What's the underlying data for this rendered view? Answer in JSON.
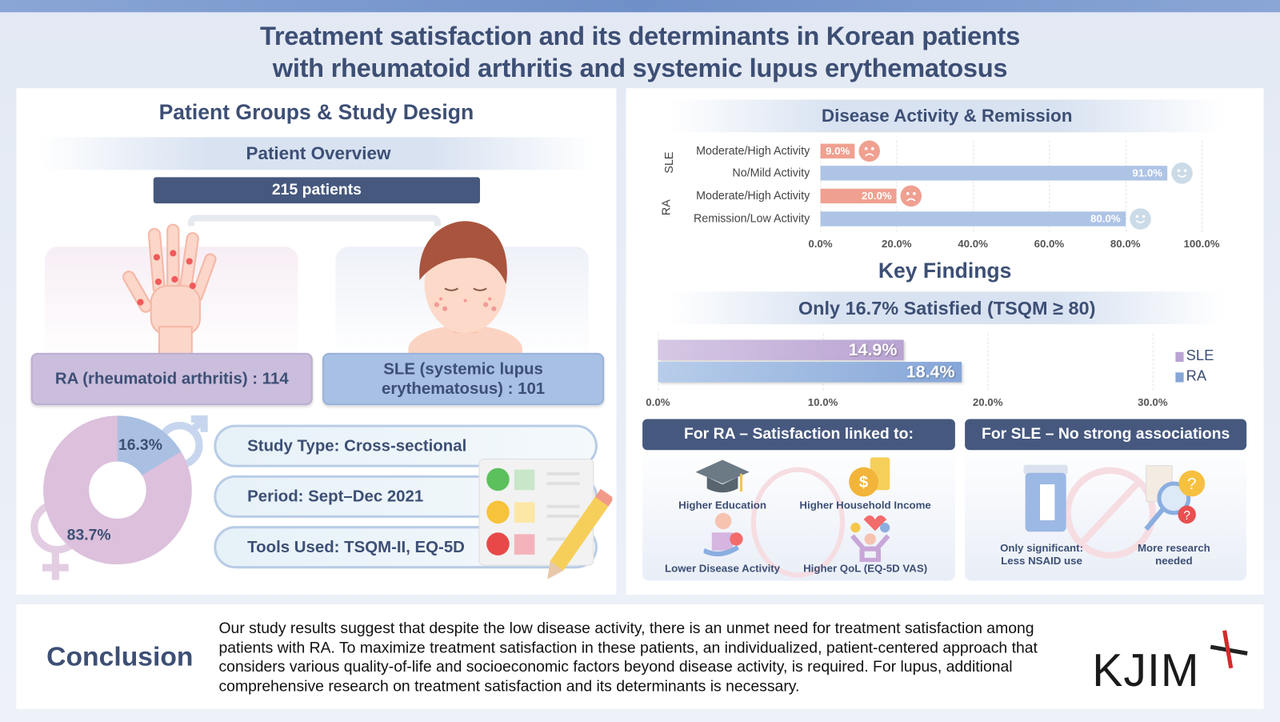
{
  "title": {
    "line1": "Treatment satisfaction and its determinants in Korean patients",
    "line2": "with rheumatoid arthritis and systemic lupus erythematosus"
  },
  "left": {
    "heading": "Patient Groups & Study Design",
    "overview_label": "Patient Overview",
    "total": "215 patients",
    "ra_group": "RA (rheumatoid arthritis) : 114",
    "sle_group_line1": "SLE (systemic lupus",
    "sle_group_line2": "erythematosus) : 101",
    "sex_donut": {
      "male_pct": 16.3,
      "female_pct": 83.7,
      "male_label": "16.3%",
      "female_label": "83.7%",
      "colors": {
        "male": "#a9c0e3",
        "female": "#dcc0dc"
      }
    },
    "study_type": "Study Type: Cross-sectional",
    "period": "Period: Sept–Dec 2021",
    "tools": "Tools Used: TSQM-II, EQ-5D"
  },
  "right": {
    "activity_heading": "Disease Activity & Remission",
    "key_findings": "Key Findings",
    "satisfied_banner": "Only 16.7% Satisfied (TSQM ≥ 80)",
    "ra_box_title": "For RA – Satisfaction linked to:",
    "sle_box_title": "For SLE – No strong associations",
    "ra_factors": [
      "Higher Education",
      "Higher Household Income",
      "Lower Disease Activity",
      "Higher QoL (EQ-5D VAS)"
    ],
    "sle_factors": [
      {
        "line1": "Only significant:",
        "line2": "Less NSAID use"
      },
      {
        "line1": "More research",
        "line2": "needed"
      }
    ]
  },
  "chart_data": [
    {
      "type": "bar",
      "orientation": "horizontal",
      "title": "Disease Activity & Remission",
      "groups": [
        "SLE",
        "RA"
      ],
      "categories": [
        "Moderate/High Activity",
        "No/Mild Activity",
        "Moderate/High Activity",
        "Remission/Low Activity"
      ],
      "category_groups": [
        "SLE",
        "SLE",
        "RA",
        "RA"
      ],
      "values": [
        9.0,
        91.0,
        20.0,
        80.0
      ],
      "value_labels": [
        "9.0%",
        "91.0%",
        "20.0%",
        "80.0%"
      ],
      "faces": [
        "sad",
        "happy",
        "sad",
        "happy"
      ],
      "colors": {
        "bad": "#f0a090",
        "good": "#aec4e6"
      },
      "xlim": [
        0,
        100
      ],
      "xticks": [
        "0.0%",
        "20.0%",
        "40.0%",
        "60.0%",
        "80.0%",
        "100.0%"
      ],
      "grid": true
    },
    {
      "type": "bar",
      "orientation": "horizontal",
      "series": [
        {
          "name": "SLE",
          "value": 14.9,
          "label": "14.9%",
          "color": "#b9a3d2"
        },
        {
          "name": "RA",
          "value": 18.4,
          "label": "18.4%",
          "color": "#86a6d8"
        }
      ],
      "xlim": [
        0,
        30
      ],
      "xticks": [
        "0.0%",
        "10.0%",
        "20.0%",
        "30.0%"
      ],
      "legend": "right",
      "grid": true
    }
  ],
  "conclusion": {
    "label": "Conclusion",
    "text": "Our study results suggest that despite the low disease activity, there is an unmet need for treatment satisfaction among patients with RA. To maximize treatment satisfaction in these patients, an individualized, patient-centered approach that considers various quality-of-life and socioeconomic factors beyond disease activity, is required. For lupus, additional comprehensive research on treatment satisfaction and its determinants is necessary.",
    "logo": "KJIM"
  }
}
